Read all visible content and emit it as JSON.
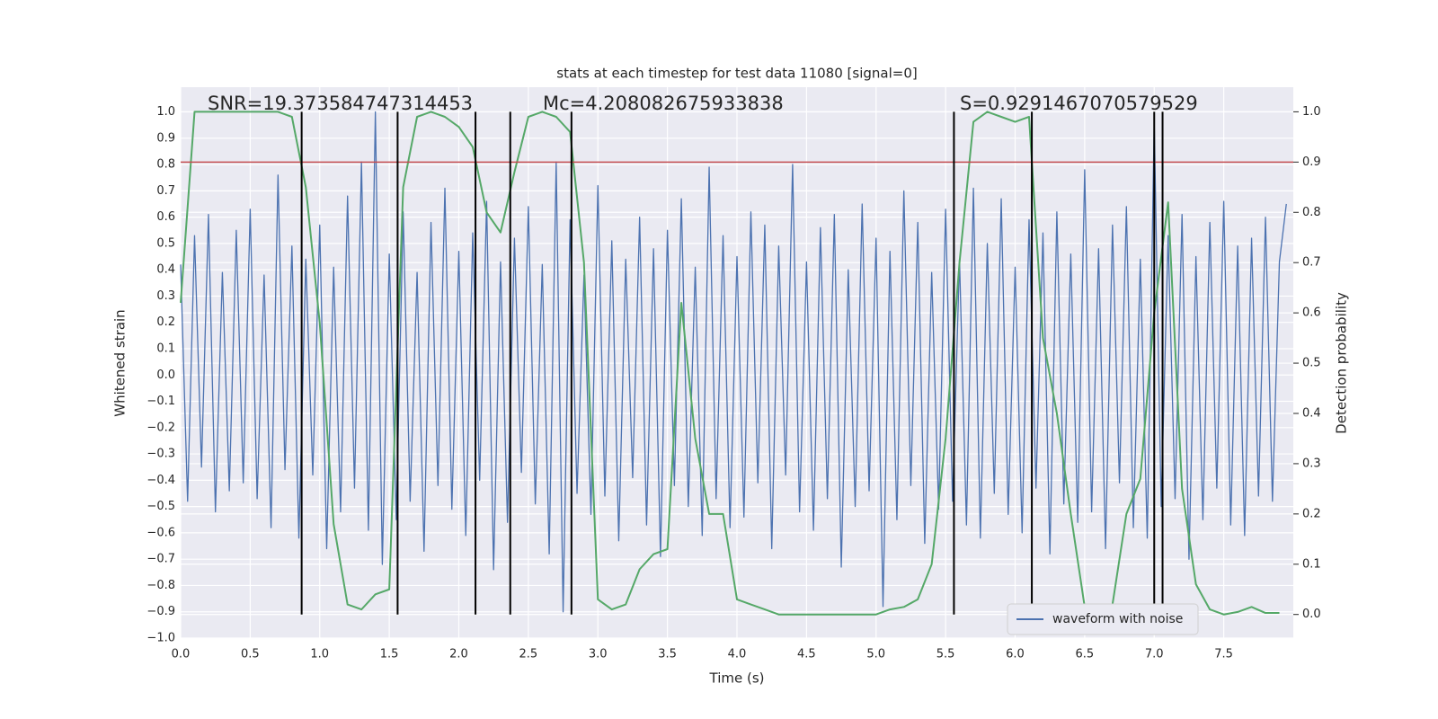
{
  "chart_data": {
    "type": "line",
    "title": "stats at each timestep for test data 11080 [signal=0]",
    "x_label": "Time (s)",
    "y_label": "Whitened strain",
    "y2_label": "Detection probability",
    "xlim": [
      0,
      8.0
    ],
    "ylim": [
      -1.0,
      1.094
    ],
    "y2lim": [
      -0.047,
      1.049
    ],
    "xticks": [
      {
        "value": 0,
        "label": "0.0"
      },
      0.5,
      {
        "value": 1,
        "label": "1.0"
      },
      1.5,
      {
        "value": 2,
        "label": "2.0"
      },
      2.5,
      {
        "value": 3,
        "label": "3.0"
      },
      3.5,
      {
        "value": 4,
        "label": "4.0"
      },
      4.5,
      {
        "value": 5,
        "label": "5.0"
      },
      5.5,
      {
        "value": 6,
        "label": "6.0"
      },
      6.5,
      {
        "value": 7,
        "label": "7.0"
      },
      7.5
    ],
    "yticks": [
      {
        "value": -1,
        "label": "−1.0"
      },
      {
        "value": -0.9,
        "label": "−0.9"
      },
      {
        "value": -0.8,
        "label": "−0.8"
      },
      {
        "value": -0.7,
        "label": "−0.7"
      },
      {
        "value": -0.6,
        "label": "−0.6"
      },
      {
        "value": -0.5,
        "label": "−0.5"
      },
      {
        "value": -0.4,
        "label": "−0.4"
      },
      {
        "value": -0.3,
        "label": "−0.3"
      },
      {
        "value": -0.2,
        "label": "−0.2"
      },
      {
        "value": -0.1,
        "label": "−0.1"
      },
      {
        "value": 0,
        "label": "0.0"
      },
      0.1,
      0.2,
      0.3,
      0.4,
      0.5,
      0.6,
      0.7,
      0.8,
      0.9,
      {
        "value": 1,
        "label": "1.0"
      }
    ],
    "y2ticks": [
      {
        "value": 0,
        "label": "0.0"
      },
      0.1,
      0.2,
      0.3,
      0.4,
      0.5,
      0.6,
      0.7,
      0.8,
      0.9,
      {
        "value": 1,
        "label": "1.0"
      }
    ],
    "grid": true,
    "legend": "lower right",
    "series": [
      {
        "name": "waveform with noise",
        "color": "#4c72b0",
        "x": [
          0,
          0.05,
          0.1,
          0.15,
          0.2,
          0.25,
          0.3,
          0.35,
          0.4,
          0.45,
          0.5,
          0.55,
          0.6,
          0.65,
          0.7,
          0.75,
          0.8,
          0.85,
          0.9,
          0.95,
          1,
          1.05,
          1.1,
          1.15,
          1.2,
          1.25,
          1.3,
          1.35,
          1.4,
          1.45,
          1.5,
          1.55,
          1.6,
          1.65,
          1.7,
          1.75,
          1.8,
          1.85,
          1.9,
          1.95,
          2,
          2.05,
          2.1,
          2.15,
          2.2,
          2.25,
          2.3,
          2.35,
          2.4,
          2.45,
          2.5,
          2.55,
          2.6,
          2.65,
          2.7,
          2.75,
          2.8,
          2.85,
          2.9,
          2.95,
          3,
          3.05,
          3.1,
          3.15,
          3.2,
          3.25,
          3.3,
          3.35,
          3.4,
          3.45,
          3.5,
          3.55,
          3.6,
          3.65,
          3.7,
          3.75,
          3.8,
          3.85,
          3.9,
          3.95,
          4,
          4.05,
          4.1,
          4.15,
          4.2,
          4.25,
          4.3,
          4.35,
          4.4,
          4.45,
          4.5,
          4.55,
          4.6,
          4.65,
          4.7,
          4.75,
          4.8,
          4.85,
          4.9,
          4.95,
          5,
          5.05,
          5.1,
          5.15,
          5.2,
          5.25,
          5.3,
          5.35,
          5.4,
          5.45,
          5.5,
          5.55,
          5.6,
          5.65,
          5.7,
          5.75,
          5.8,
          5.85,
          5.9,
          5.95,
          6,
          6.05,
          6.1,
          6.15,
          6.2,
          6.25,
          6.3,
          6.35,
          6.4,
          6.45,
          6.5,
          6.55,
          6.6,
          6.65,
          6.7,
          6.75,
          6.8,
          6.85,
          6.9,
          6.95,
          7,
          7.05,
          7.1,
          7.15,
          7.2,
          7.25,
          7.3,
          7.35,
          7.4,
          7.45,
          7.5,
          7.55,
          7.6,
          7.65,
          7.7,
          7.75,
          7.8,
          7.85,
          7.9,
          7.95
        ],
        "values": [
          0.42,
          -0.48,
          0.53,
          -0.35,
          0.61,
          -0.52,
          0.39,
          -0.44,
          0.55,
          -0.41,
          0.63,
          -0.47,
          0.38,
          -0.58,
          0.76,
          -0.36,
          0.49,
          -0.62,
          0.44,
          -0.38,
          0.57,
          -0.66,
          0.41,
          -0.52,
          0.68,
          -0.43,
          0.81,
          -0.59,
          1.0,
          -0.72,
          0.46,
          -0.55,
          0.62,
          -0.48,
          0.39,
          -0.67,
          0.58,
          -0.42,
          0.71,
          -0.51,
          0.47,
          -0.61,
          0.54,
          -0.4,
          0.66,
          -0.74,
          0.43,
          -0.56,
          0.52,
          -0.37,
          0.64,
          -0.49,
          0.42,
          -0.68,
          0.81,
          -0.9,
          0.59,
          -0.45,
          0.38,
          -0.53,
          0.72,
          -0.46,
          0.51,
          -0.63,
          0.44,
          -0.39,
          0.6,
          -0.57,
          0.48,
          -0.69,
          0.55,
          -0.42,
          0.67,
          -0.5,
          0.41,
          -0.61,
          0.79,
          -0.47,
          0.53,
          -0.58,
          0.45,
          -0.54,
          0.62,
          -0.41,
          0.57,
          -0.66,
          0.49,
          -0.38,
          0.8,
          -0.52,
          0.43,
          -0.59,
          0.56,
          -0.47,
          0.61,
          -0.73,
          0.4,
          -0.5,
          0.65,
          -0.44,
          0.52,
          -0.88,
          0.47,
          -0.55,
          0.7,
          -0.42,
          0.58,
          -0.64,
          0.39,
          -0.51,
          0.63,
          -0.48,
          0.44,
          -0.57,
          0.71,
          -0.62,
          0.5,
          -0.45,
          0.67,
          -0.53,
          0.41,
          -0.6,
          0.59,
          -0.43,
          0.54,
          -0.68,
          0.62,
          -0.49,
          0.46,
          -0.56,
          0.78,
          -0.52,
          0.48,
          -0.66,
          0.57,
          -0.41,
          0.64,
          -0.58,
          0.44,
          -0.62,
          0.96,
          -0.5,
          0.53,
          -0.47,
          0.61,
          -0.7,
          0.45,
          -0.55,
          0.58,
          -0.43,
          0.66,
          -0.57,
          0.49,
          -0.61,
          0.52,
          -0.46,
          0.6,
          -0.48,
          0.43,
          0.65
        ]
      },
      {
        "color": "#55a868",
        "axis": "y2",
        "x": [
          0,
          0.1,
          0.2,
          0.3,
          0.4,
          0.5,
          0.6,
          0.7,
          0.8,
          0.9,
          1,
          1.1,
          1.2,
          1.3,
          1.4,
          1.5,
          1.6,
          1.7,
          1.8,
          1.9,
          2,
          2.1,
          2.2,
          2.3,
          2.4,
          2.5,
          2.6,
          2.7,
          2.8,
          2.9,
          3,
          3.1,
          3.2,
          3.3,
          3.4,
          3.5,
          3.6,
          3.7,
          3.8,
          3.9,
          4,
          4.1,
          4.2,
          4.3,
          4.4,
          4.5,
          4.6,
          4.7,
          4.8,
          4.9,
          5,
          5.1,
          5.2,
          5.3,
          5.4,
          5.5,
          5.6,
          5.7,
          5.8,
          5.9,
          6,
          6.1,
          6.2,
          6.3,
          6.4,
          6.5,
          6.6,
          6.7,
          6.8,
          6.9,
          7,
          7.1,
          7.2,
          7.3,
          7.4,
          7.5,
          7.6,
          7.7,
          7.8,
          7.9
        ],
        "values": [
          0.62,
          1.0,
          1.0,
          1.0,
          1.0,
          1.0,
          1.0,
          1.0,
          0.99,
          0.85,
          0.58,
          0.18,
          0.02,
          0.01,
          0.04,
          0.05,
          0.85,
          0.99,
          1.0,
          0.99,
          0.97,
          0.93,
          0.8,
          0.76,
          0.88,
          0.99,
          1.0,
          0.99,
          0.96,
          0.7,
          0.03,
          0.01,
          0.02,
          0.09,
          0.12,
          0.13,
          0.62,
          0.35,
          0.2,
          0.2,
          0.03,
          0.02,
          0.01,
          0,
          0,
          0,
          0,
          0,
          0,
          0,
          0,
          0.01,
          0.015,
          0.03,
          0.1,
          0.35,
          0.7,
          0.98,
          1.0,
          0.99,
          0.98,
          0.99,
          0.55,
          0.4,
          0.2,
          0.015,
          0.01,
          0.02,
          0.2,
          0.27,
          0.6,
          0.82,
          0.25,
          0.06,
          0.01,
          0,
          0.005,
          0.015,
          0.003,
          0.003
        ]
      }
    ],
    "hline": {
      "y2": 0.9,
      "color": "#c44e52"
    },
    "vlines": {
      "x": [
        0.87,
        1.56,
        2.12,
        2.37,
        2.81,
        5.56,
        6.12,
        7.0,
        7.06
      ],
      "y2min": 0,
      "y2max": 1,
      "color": "#000000"
    },
    "annotations": [
      "SNR=19.373584747314453",
      "Mc=4.208082675933838",
      "S=0.9291467070579529"
    ]
  }
}
